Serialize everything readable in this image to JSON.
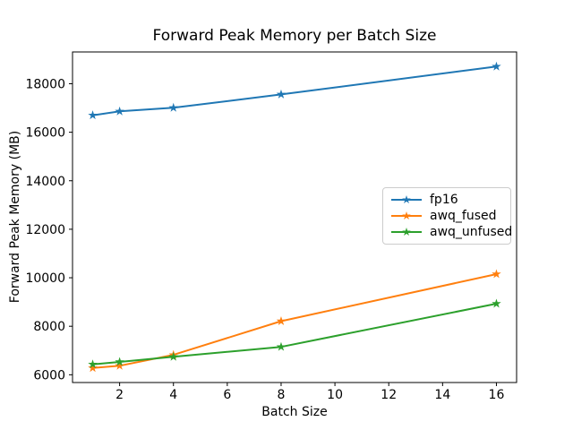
{
  "chart_data": {
    "type": "line",
    "title": "Forward Peak Memory per Batch Size",
    "xlabel": "Batch Size",
    "ylabel": "Forward Peak Memory (MB)",
    "x": [
      1,
      2,
      4,
      8,
      16
    ],
    "series": [
      {
        "name": "fp16",
        "color": "#1f77b4",
        "values": [
          16700,
          16860,
          17010,
          17560,
          18710
        ]
      },
      {
        "name": "awq_fused",
        "color": "#ff7f0e",
        "values": [
          6280,
          6370,
          6820,
          8210,
          10150
        ]
      },
      {
        "name": "awq_unfused",
        "color": "#2ca02c",
        "values": [
          6430,
          6530,
          6740,
          7150,
          8930
        ]
      }
    ],
    "xlim": [
      0.25,
      16.75
    ],
    "ylim": [
      5680,
      19310
    ],
    "x_ticks": [
      2,
      4,
      6,
      8,
      10,
      12,
      14,
      16
    ],
    "y_ticks": [
      6000,
      8000,
      10000,
      12000,
      14000,
      16000,
      18000
    ],
    "marker": "star",
    "grid": false,
    "legend_position": "center-right"
  }
}
